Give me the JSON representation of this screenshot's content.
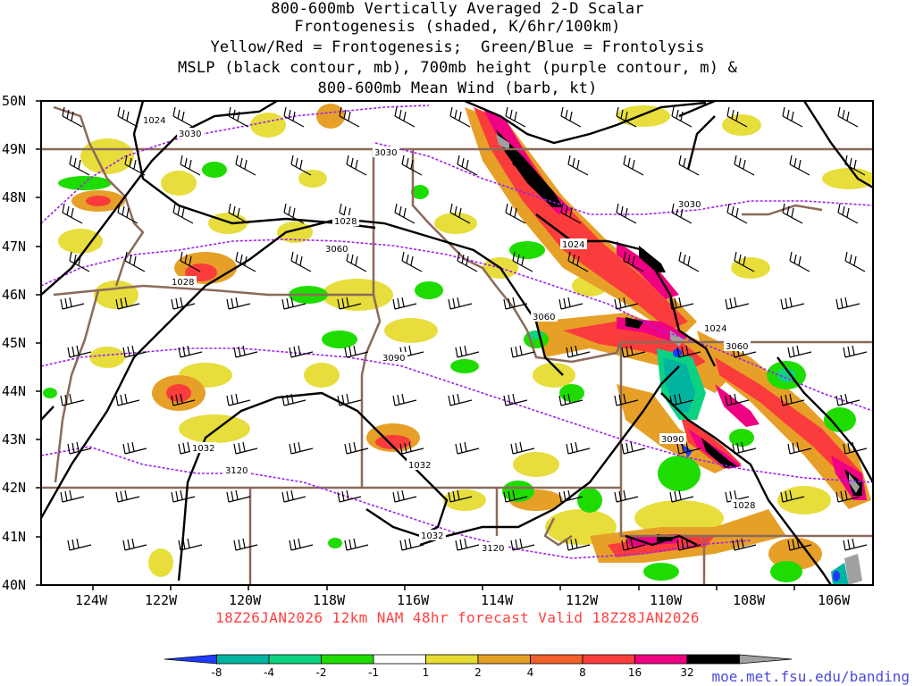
{
  "title_lines": [
    "800-600mb Vertically Averaged 2-D Scalar",
    "Frontogenesis (shaded, K/6hr/100km)",
    "Yellow/Red = Frontogenesis;  Green/Blue = Frontolysis",
    "MSLP (black contour, mb), 700mb height (purple contour, m) &",
    "800-600mb Mean Wind (barb, kt)"
  ],
  "valid_line": "18Z26JAN2026 12km NAM 48hr forecast Valid 18Z28JAN2026",
  "url": "moe.met.fsu.edu/banding",
  "map": {
    "lon_range": [
      -125,
      -105
    ],
    "lat_range": [
      40,
      50
    ],
    "lat_ticks": [
      "40N",
      "41N",
      "42N",
      "43N",
      "44N",
      "45N",
      "46N",
      "47N",
      "48N",
      "49N",
      "50N"
    ],
    "lon_ticks": [
      "124W",
      "122W",
      "120W",
      "118W",
      "116W",
      "114W",
      "112W",
      "110W",
      "108W",
      "106W"
    ],
    "mslp_labels": [
      "1024",
      "1028",
      "1028",
      "1024",
      "1024",
      "1032",
      "1032",
      "1032",
      "1028"
    ],
    "height_labels": [
      "3030",
      "3030",
      "3060",
      "3030",
      "3060",
      "3090",
      "3060",
      "3090",
      "3120",
      "3120"
    ]
  },
  "colorbar": {
    "labels": [
      "-8",
      "-4",
      "-2",
      "-1",
      "1",
      "2",
      "4",
      "8",
      "16",
      "32"
    ],
    "colors": [
      "#1e3cff",
      "#00b4a0",
      "#0ad282",
      "#1edc00",
      "#ffffff",
      "#e6dc32",
      "#e6a028",
      "#f06028",
      "#fa3c3c",
      "#f00082",
      "#000000",
      "#a0a0a0"
    ]
  },
  "colors": {
    "mslp": "#000000",
    "height": "#a020f0",
    "border": "#8b6a5a",
    "valid_text": "#ff4040",
    "url_text": "#4a4adb"
  }
}
